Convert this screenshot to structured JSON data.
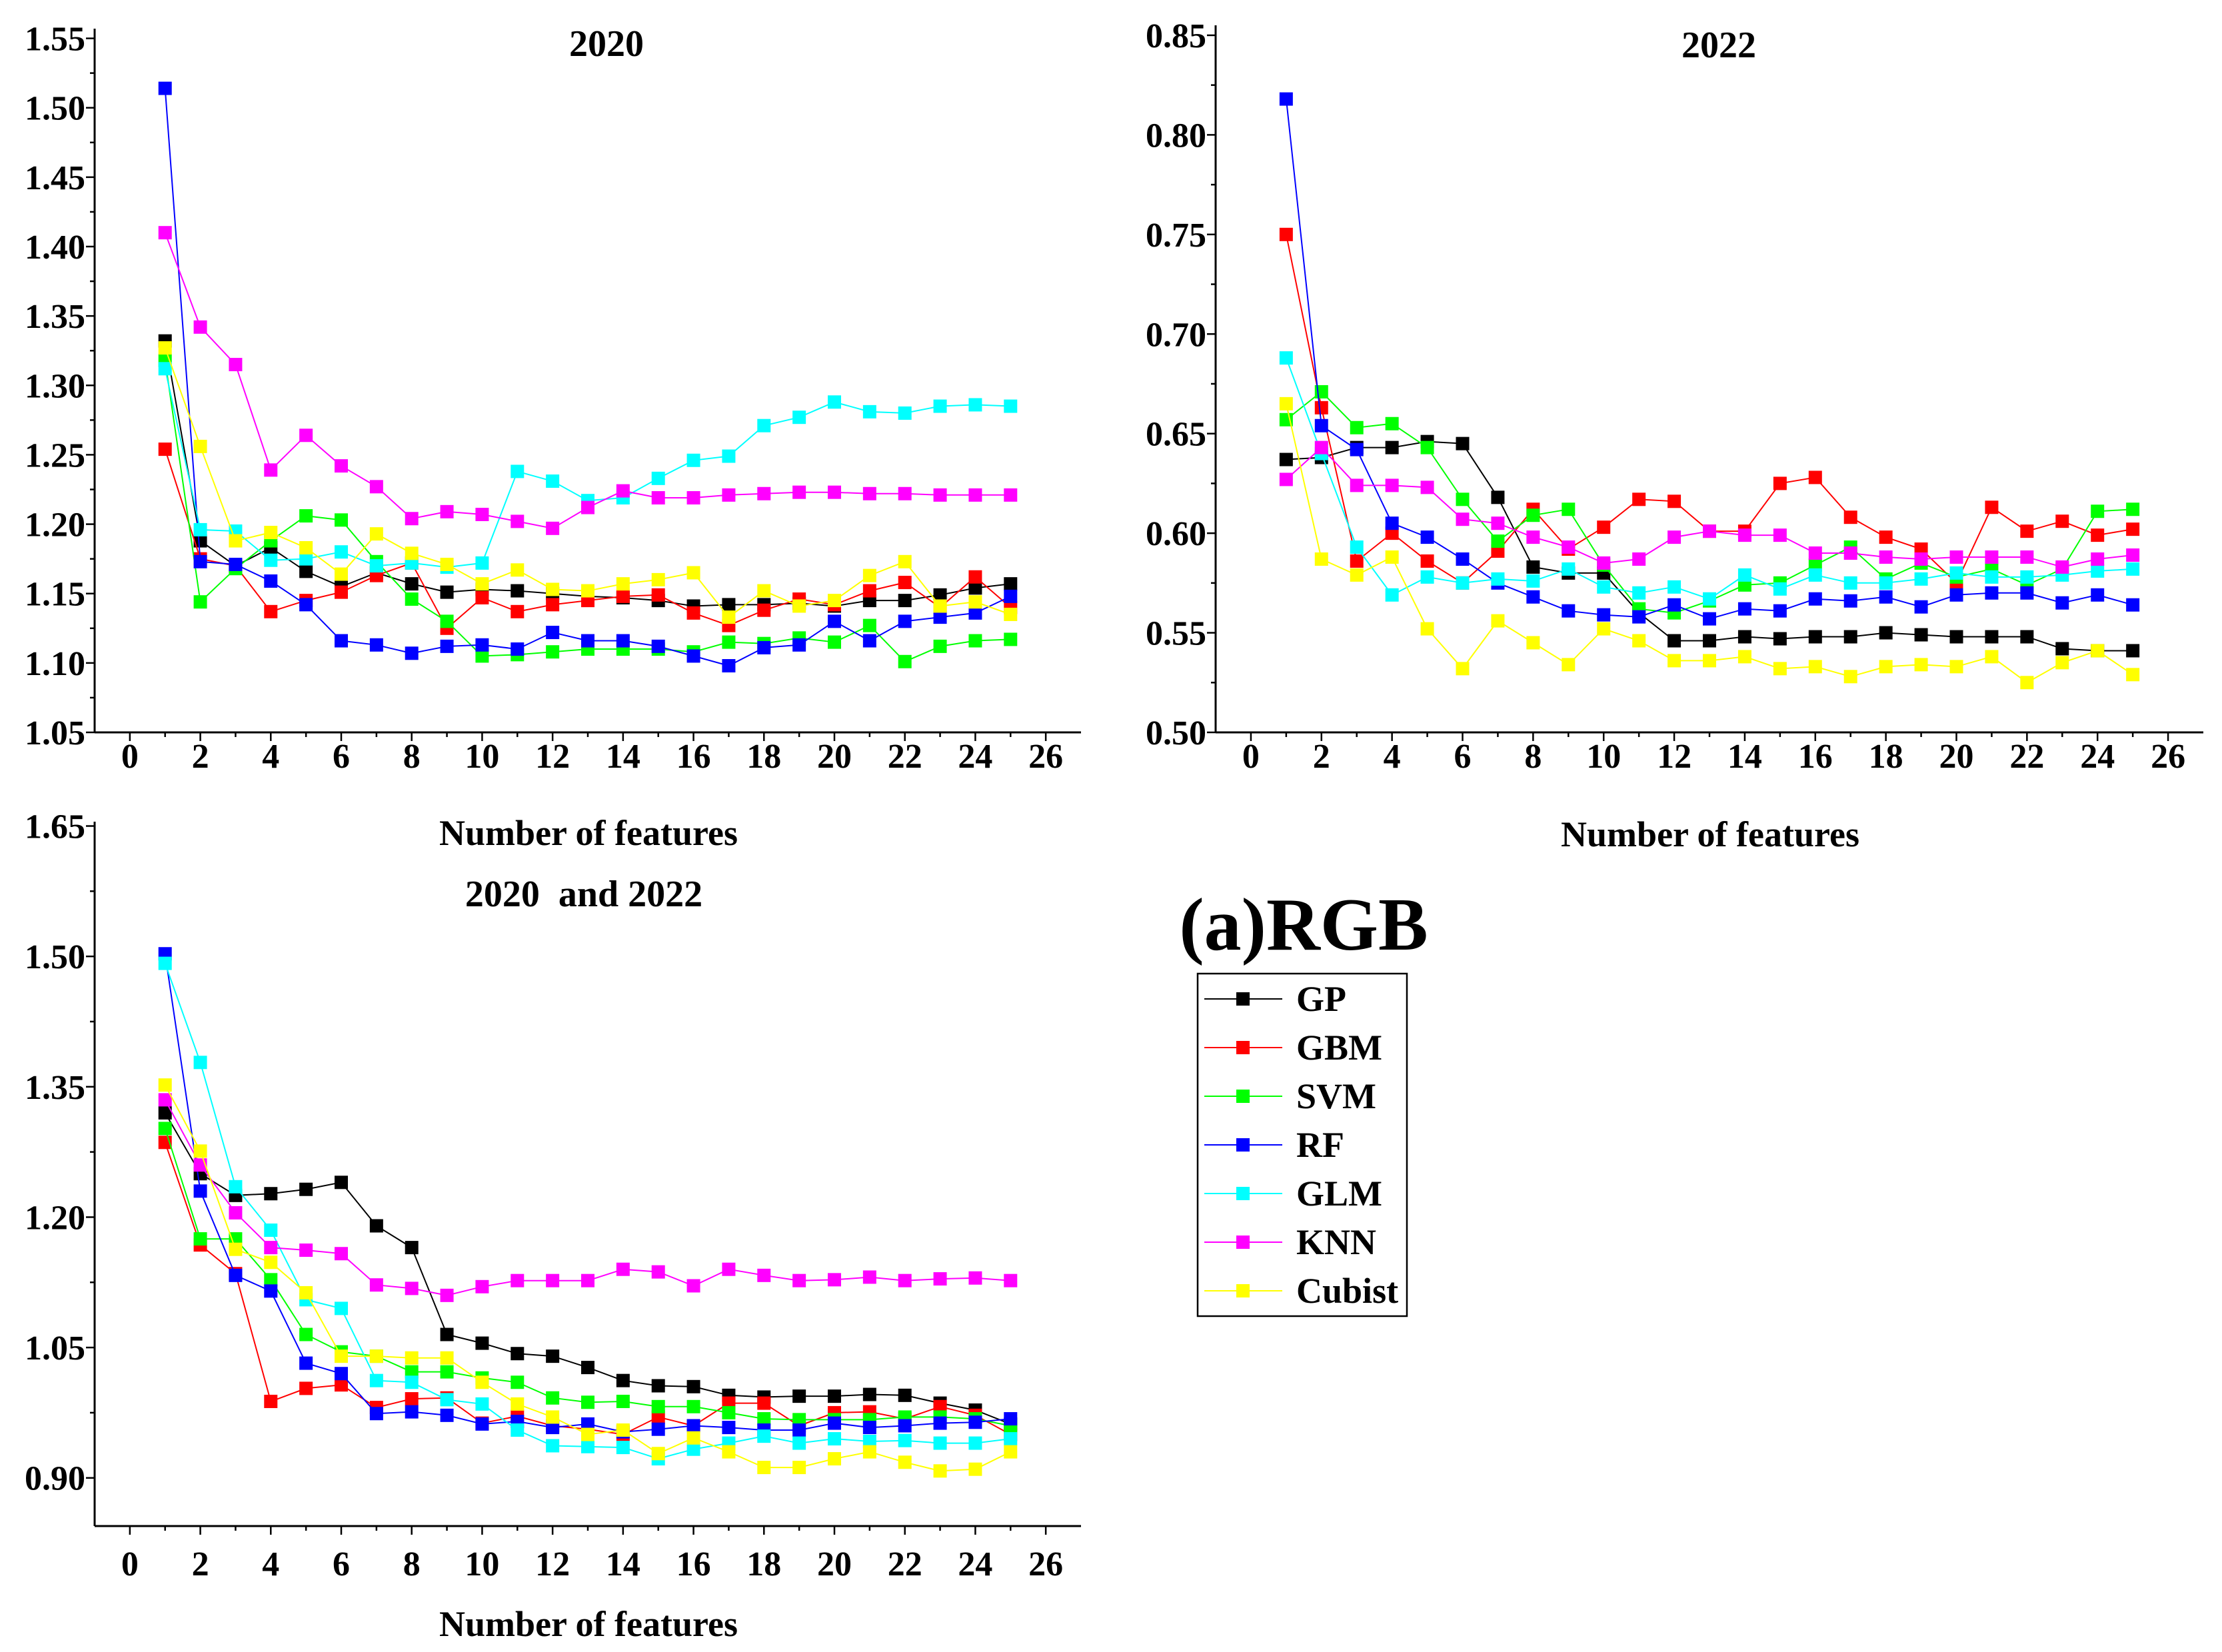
{
  "figure_label": "(a)RGB",
  "chart_data": [
    {
      "type": "line",
      "title": "2020",
      "xlabel": "Number of features",
      "ylabel": "",
      "xlim": [
        -1,
        27
      ],
      "ylim": [
        1.05,
        1.557
      ],
      "xticks": [
        0,
        2,
        4,
        6,
        8,
        10,
        12,
        14,
        16,
        18,
        20,
        22,
        24,
        26
      ],
      "xtick_labels": [
        "0",
        "2",
        "4",
        "6",
        "8",
        "10",
        "12",
        "14",
        "16",
        "18",
        "20",
        "22",
        "24",
        "26"
      ],
      "yticks": [
        1.05,
        1.1,
        1.15,
        1.2,
        1.25,
        1.3,
        1.35,
        1.4,
        1.45,
        1.5,
        1.55
      ],
      "ytick_labels": [
        "1.05",
        "1.10",
        "1.15",
        "1.20",
        "1.25",
        "1.30",
        "1.35",
        "1.40",
        "1.45",
        "1.50",
        "1.55"
      ],
      "x": [
        1,
        2,
        3,
        4,
        5,
        6,
        7,
        8,
        9,
        10,
        11,
        12,
        13,
        14,
        15,
        16,
        17,
        18,
        19,
        20,
        21,
        22,
        23,
        24,
        25
      ],
      "series": [
        {
          "name": "GP",
          "color": "#000000",
          "values": [
            1.332,
            1.188,
            1.17,
            1.183,
            1.166,
            1.155,
            1.165,
            1.157,
            1.151,
            1.153,
            1.152,
            1.15,
            1.148,
            1.147,
            1.145,
            1.141,
            1.142,
            1.142,
            1.143,
            1.141,
            1.145,
            1.145,
            1.149,
            1.154,
            1.157
          ]
        },
        {
          "name": "GBM",
          "color": "#FF0000",
          "values": [
            1.254,
            1.175,
            1.17,
            1.137,
            1.145,
            1.151,
            1.163,
            1.172,
            1.125,
            1.147,
            1.137,
            1.142,
            1.145,
            1.148,
            1.149,
            1.136,
            1.127,
            1.138,
            1.146,
            1.142,
            1.152,
            1.158,
            1.14,
            1.162,
            1.14
          ]
        },
        {
          "name": "SVM",
          "color": "#00FF00",
          "values": [
            1.318,
            1.144,
            1.168,
            1.188,
            1.206,
            1.203,
            1.173,
            1.146,
            1.13,
            1.105,
            1.106,
            1.108,
            1.11,
            1.11,
            1.11,
            1.108,
            1.115,
            1.114,
            1.118,
            1.115,
            1.127,
            1.101,
            1.112,
            1.116,
            1.117
          ]
        },
        {
          "name": "RF",
          "color": "#0000FF",
          "values": [
            1.514,
            1.173,
            1.171,
            1.159,
            1.142,
            1.116,
            1.113,
            1.107,
            1.112,
            1.113,
            1.11,
            1.122,
            1.116,
            1.116,
            1.112,
            1.105,
            1.098,
            1.111,
            1.113,
            1.13,
            1.116,
            1.13,
            1.133,
            1.136,
            1.148
          ]
        },
        {
          "name": "GLM",
          "color": "#00FFFF",
          "values": [
            1.312,
            1.196,
            1.195,
            1.174,
            1.175,
            1.18,
            1.17,
            1.172,
            1.169,
            1.172,
            1.238,
            1.231,
            1.217,
            1.219,
            1.233,
            1.246,
            1.249,
            1.271,
            1.277,
            1.288,
            1.281,
            1.28,
            1.285,
            1.286,
            1.285
          ]
        },
        {
          "name": "KNN",
          "color": "#FF00FF",
          "values": [
            1.41,
            1.342,
            1.315,
            1.239,
            1.264,
            1.242,
            1.227,
            1.204,
            1.209,
            1.207,
            1.202,
            1.197,
            1.212,
            1.224,
            1.219,
            1.219,
            1.221,
            1.222,
            1.223,
            1.223,
            1.222,
            1.222,
            1.221,
            1.221,
            1.221
          ]
        },
        {
          "name": "Cubist",
          "color": "#FFFF00",
          "values": [
            1.327,
            1.256,
            1.188,
            1.194,
            1.183,
            1.164,
            1.193,
            1.179,
            1.171,
            1.157,
            1.167,
            1.153,
            1.152,
            1.157,
            1.16,
            1.165,
            1.133,
            1.152,
            1.141,
            1.145,
            1.163,
            1.173,
            1.141,
            1.144,
            1.135
          ]
        }
      ]
    },
    {
      "type": "line",
      "title": "2022",
      "xlabel": "Number of features",
      "ylabel": "",
      "xlim": [
        -1,
        27
      ],
      "ylim": [
        0.5,
        0.855
      ],
      "xticks": [
        0,
        2,
        4,
        6,
        8,
        10,
        12,
        14,
        16,
        18,
        20,
        22,
        24,
        26
      ],
      "xtick_labels": [
        "0",
        "2",
        "4",
        "6",
        "8",
        "10",
        "12",
        "14",
        "16",
        "18",
        "20",
        "22",
        "24",
        "26"
      ],
      "yticks": [
        0.5,
        0.55,
        0.6,
        0.65,
        0.7,
        0.75,
        0.8,
        0.85
      ],
      "ytick_labels": [
        "0.50",
        "0.55",
        "0.60",
        "0.65",
        "0.70",
        "0.75",
        "0.80",
        "0.85"
      ],
      "x": [
        1,
        2,
        3,
        4,
        5,
        6,
        7,
        8,
        9,
        10,
        11,
        12,
        13,
        14,
        15,
        16,
        17,
        18,
        19,
        20,
        21,
        22,
        23,
        24,
        25
      ],
      "series": [
        {
          "name": "GP",
          "color": "#000000",
          "values": [
            0.637,
            0.638,
            0.643,
            0.643,
            0.646,
            0.645,
            0.618,
            0.583,
            0.58,
            0.58,
            0.56,
            0.546,
            0.546,
            0.548,
            0.547,
            0.548,
            0.548,
            0.55,
            0.549,
            0.548,
            0.548,
            0.548,
            0.542,
            0.541,
            0.541
          ]
        },
        {
          "name": "GBM",
          "color": "#FF0000",
          "values": [
            0.75,
            0.663,
            0.586,
            0.6,
            0.586,
            0.575,
            0.591,
            0.612,
            0.592,
            0.603,
            0.617,
            0.616,
            0.601,
            0.601,
            0.625,
            0.628,
            0.608,
            0.598,
            0.592,
            0.575,
            0.613,
            0.601,
            0.606,
            0.599,
            0.602
          ]
        },
        {
          "name": "SVM",
          "color": "#00FF00",
          "values": [
            0.657,
            0.671,
            0.653,
            0.655,
            0.643,
            0.617,
            0.596,
            0.609,
            0.612,
            0.584,
            0.562,
            0.56,
            0.566,
            0.574,
            0.575,
            0.584,
            0.593,
            0.577,
            0.585,
            0.578,
            0.582,
            0.574,
            0.582,
            0.611,
            0.612
          ]
        },
        {
          "name": "RF",
          "color": "#0000FF",
          "values": [
            0.818,
            0.654,
            0.642,
            0.605,
            0.598,
            0.587,
            0.575,
            0.568,
            0.561,
            0.559,
            0.558,
            0.564,
            0.557,
            0.562,
            0.561,
            0.567,
            0.566,
            0.568,
            0.563,
            0.569,
            0.57,
            0.57,
            0.565,
            0.569,
            0.564
          ]
        },
        {
          "name": "GLM",
          "color": "#00FFFF",
          "values": [
            0.688,
            0.64,
            0.593,
            0.569,
            0.578,
            0.575,
            0.577,
            0.576,
            0.582,
            0.573,
            0.57,
            0.573,
            0.567,
            0.579,
            0.572,
            0.579,
            0.575,
            0.575,
            0.577,
            0.58,
            0.578,
            0.578,
            0.579,
            0.581,
            0.582
          ]
        },
        {
          "name": "KNN",
          "color": "#FF00FF",
          "values": [
            0.627,
            0.643,
            0.624,
            0.624,
            0.623,
            0.607,
            0.605,
            0.598,
            0.593,
            0.585,
            0.587,
            0.598,
            0.601,
            0.599,
            0.599,
            0.59,
            0.59,
            0.588,
            0.587,
            0.588,
            0.588,
            0.588,
            0.583,
            0.587,
            0.589
          ]
        },
        {
          "name": "Cubist",
          "color": "#FFFF00",
          "values": [
            0.665,
            0.587,
            0.579,
            0.588,
            0.552,
            0.532,
            0.556,
            0.545,
            0.534,
            0.552,
            0.546,
            0.536,
            0.536,
            0.538,
            0.532,
            0.533,
            0.528,
            0.533,
            0.534,
            0.533,
            0.538,
            0.525,
            0.535,
            0.541,
            0.529
          ]
        }
      ]
    },
    {
      "type": "line",
      "title": "2020  and 2022",
      "xlabel": "Number of features",
      "ylabel": "",
      "xlim": [
        -1,
        27
      ],
      "ylim": [
        0.8446,
        1.655
      ],
      "xticks": [
        0,
        2,
        4,
        6,
        8,
        10,
        12,
        14,
        16,
        18,
        20,
        22,
        24,
        26
      ],
      "xtick_labels": [
        "0",
        "2",
        "4",
        "6",
        "8",
        "10",
        "12",
        "14",
        "16",
        "18",
        "20",
        "22",
        "24",
        "26"
      ],
      "yticks": [
        0.9,
        1.05,
        1.2,
        1.35,
        1.5,
        1.65
      ],
      "ytick_labels": [
        "0.90",
        "1.05",
        "1.20",
        "1.35",
        "1.50",
        "1.65"
      ],
      "x": [
        1,
        2,
        3,
        4,
        5,
        6,
        7,
        8,
        9,
        10,
        11,
        12,
        13,
        14,
        15,
        16,
        17,
        18,
        19,
        20,
        21,
        22,
        23,
        24,
        25
      ],
      "series": [
        {
          "name": "GP",
          "color": "#000000",
          "values": [
            1.32,
            1.25,
            1.225,
            1.227,
            1.232,
            1.24,
            1.19,
            1.165,
            1.065,
            1.055,
            1.043,
            1.04,
            1.027,
            1.012,
            1.006,
            1.005,
            0.995,
            0.993,
            0.994,
            0.994,
            0.996,
            0.995,
            0.986,
            0.978,
            0.962
          ]
        },
        {
          "name": "GBM",
          "color": "#FF0000",
          "values": [
            1.286,
            1.168,
            1.135,
            0.988,
            1.003,
            1.007,
            0.981,
            0.991,
            0.992,
            0.963,
            0.971,
            0.96,
            0.956,
            0.95,
            0.97,
            0.96,
            0.986,
            0.986,
            0.96,
            0.975,
            0.976,
            0.968,
            0.982,
            0.972,
            0.95
          ]
        },
        {
          "name": "SVM",
          "color": "#00FF00",
          "values": [
            1.302,
            1.175,
            1.175,
            1.128,
            1.065,
            1.045,
            1.04,
            1.022,
            1.022,
            1.015,
            1.01,
            0.992,
            0.987,
            0.988,
            0.982,
            0.982,
            0.975,
            0.968,
            0.967,
            0.967,
            0.967,
            0.97,
            0.97,
            0.968,
            0.96
          ]
        },
        {
          "name": "RF",
          "color": "#0000FF",
          "values": [
            1.503,
            1.23,
            1.133,
            1.115,
            1.032,
            1.02,
            0.974,
            0.976,
            0.972,
            0.962,
            0.965,
            0.958,
            0.962,
            0.953,
            0.956,
            0.96,
            0.958,
            0.955,
            0.955,
            0.963,
            0.958,
            0.96,
            0.963,
            0.964,
            0.968
          ]
        },
        {
          "name": "GLM",
          "color": "#00FFFF",
          "values": [
            1.492,
            1.378,
            1.235,
            1.185,
            1.105,
            1.095,
            1.012,
            1.01,
            0.99,
            0.985,
            0.955,
            0.937,
            0.936,
            0.935,
            0.922,
            0.933,
            0.94,
            0.948,
            0.94,
            0.945,
            0.942,
            0.943,
            0.94,
            0.94,
            0.945
          ]
        },
        {
          "name": "KNN",
          "color": "#FF00FF",
          "values": [
            1.335,
            1.26,
            1.205,
            1.165,
            1.162,
            1.158,
            1.122,
            1.118,
            1.11,
            1.12,
            1.127,
            1.127,
            1.127,
            1.14,
            1.137,
            1.121,
            1.14,
            1.133,
            1.127,
            1.128,
            1.131,
            1.127,
            1.129,
            1.13,
            1.127
          ]
        },
        {
          "name": "Cubist",
          "color": "#FFFF00",
          "values": [
            1.352,
            1.276,
            1.163,
            1.148,
            1.113,
            1.04,
            1.04,
            1.038,
            1.038,
            1.01,
            0.985,
            0.97,
            0.95,
            0.955,
            0.928,
            0.946,
            0.93,
            0.912,
            0.912,
            0.922,
            0.93,
            0.918,
            0.908,
            0.91,
            0.93
          ]
        }
      ]
    }
  ]
}
